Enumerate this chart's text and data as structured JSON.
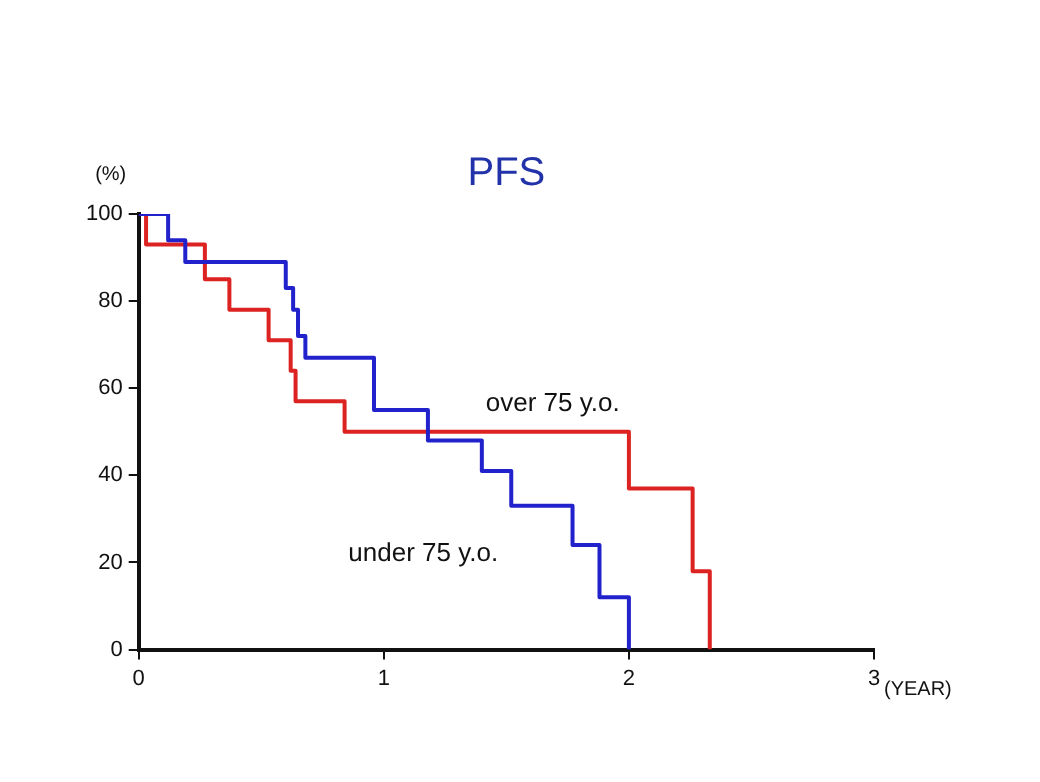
{
  "chart_data": {
    "type": "step",
    "title": "PFS",
    "ylabel": "(%)",
    "xlabel": "(YEAR)",
    "xlim": [
      0,
      3
    ],
    "xticks": [
      0,
      1,
      2,
      3
    ],
    "ylim": [
      0,
      100
    ],
    "yticks": [
      0,
      20,
      40,
      60,
      80,
      100
    ],
    "grid": false,
    "legend": false,
    "marker": "none",
    "line_style": "solid",
    "series": [
      {
        "color": "#2222cc",
        "x": [
          0,
          0.12,
          0.19,
          0.6,
          0.63,
          0.65,
          0.68,
          0.96,
          1.18,
          1.4,
          1.52,
          1.77,
          1.88,
          2.0
        ],
        "values": [
          100,
          94,
          89,
          83,
          78,
          72,
          67,
          55,
          48,
          41,
          33,
          24,
          12,
          0
        ]
      },
      {
        "color": "#dd2222",
        "x": [
          0,
          0.03,
          0.27,
          0.37,
          0.53,
          0.62,
          0.64,
          0.84,
          2.0,
          2.26,
          2.33
        ],
        "values": [
          100,
          93,
          85,
          78,
          71,
          64,
          57,
          50,
          37,
          18,
          0
        ]
      }
    ],
    "annotations": [
      "over 75 y.o.",
      "under 75 y.o."
    ]
  }
}
